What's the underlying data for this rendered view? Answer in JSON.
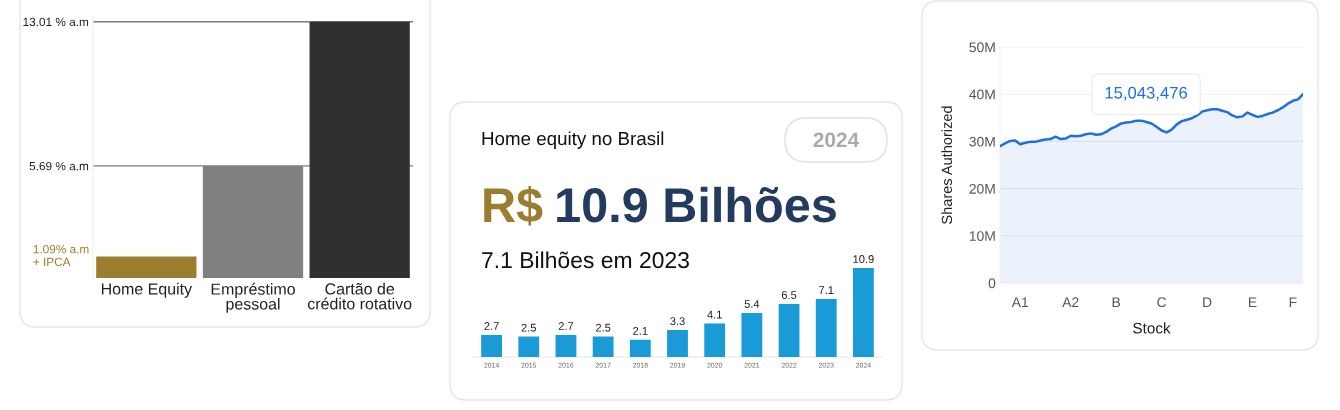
{
  "chart_data": [
    {
      "type": "bar",
      "categories": [
        "Home Equity",
        "Empréstimo\npessoal",
        "Cartão de\ncrédito rotativo"
      ],
      "values": [
        1.09,
        5.69,
        13.01
      ],
      "colors": [
        "#9a7d2f",
        "#808080",
        "#303030"
      ],
      "annotations": [
        "1.09% a.m\n+ IPCA"
      ],
      "ylim": [
        0,
        13.3
      ],
      "yticks": [
        {
          "value": 5.69,
          "label": "5.69 % a.m"
        },
        {
          "value": 13.01,
          "label": "13.01 % a.m"
        }
      ],
      "grid": "y"
    },
    {
      "type": "bar",
      "title": "Home equity no Brasil",
      "annotations": [
        "2024",
        "R$",
        "10.9 Bilhões",
        "7.1 Bilhões em 2023"
      ],
      "categories": [
        "2014",
        "2015",
        "2016",
        "2017",
        "2018",
        "2019",
        "2020",
        "2021",
        "2022",
        "2023",
        "2024"
      ],
      "values": [
        2.7,
        2.5,
        2.7,
        2.5,
        2.1,
        3.3,
        4.1,
        5.4,
        6.5,
        7.1,
        10.9
      ],
      "color": "#1a9bd7",
      "data_labels": true
    },
    {
      "type": "area",
      "xlabel": "Stock",
      "ylabel": "Shares Authorized",
      "annotations": [
        "15,043,476"
      ],
      "color": "#1e6fe0",
      "categories": [
        null,
        null,
        null,
        null,
        "A1",
        null,
        null,
        null,
        null,
        null,
        null,
        null,
        null,
        null,
        "A2",
        null,
        null,
        null,
        null,
        null,
        null,
        null,
        null,
        "B",
        null,
        null,
        null,
        null,
        null,
        null,
        null,
        null,
        "C",
        null,
        null,
        null,
        null,
        null,
        null,
        null,
        null,
        "D",
        null,
        null,
        null,
        null,
        null,
        null,
        null,
        null,
        "E",
        null,
        null,
        null,
        null,
        null,
        null,
        null,
        "F",
        null,
        null
      ],
      "values": [
        29.0,
        29.6,
        30.1,
        30.2,
        29.4,
        29.7,
        29.9,
        29.9,
        30.2,
        30.4,
        30.5,
        31.0,
        30.5,
        30.6,
        31.2,
        31.1,
        31.2,
        31.5,
        31.7,
        31.4,
        31.5,
        32.0,
        32.7,
        33.2,
        33.8,
        34.0,
        34.1,
        34.4,
        34.4,
        34.1,
        33.8,
        33.1,
        32.3,
        31.9,
        32.5,
        33.6,
        34.3,
        34.6,
        34.9,
        35.5,
        36.3,
        36.6,
        36.8,
        36.8,
        36.5,
        36.2,
        35.5,
        35.1,
        35.3,
        36.1,
        35.6,
        35.2,
        35.4,
        35.8,
        36.1,
        36.6,
        37.2,
        38.0,
        38.6,
        38.9,
        40.0
      ],
      "ylim": [
        0,
        50
      ],
      "yticks": [
        0,
        {
          "value": 10,
          "label": "10M"
        },
        {
          "value": 20,
          "label": "20M"
        },
        {
          "value": 30,
          "label": "30M"
        },
        {
          "value": 40,
          "label": "40M"
        },
        {
          "value": 50,
          "label": "50M"
        }
      ],
      "grid": "y"
    }
  ]
}
